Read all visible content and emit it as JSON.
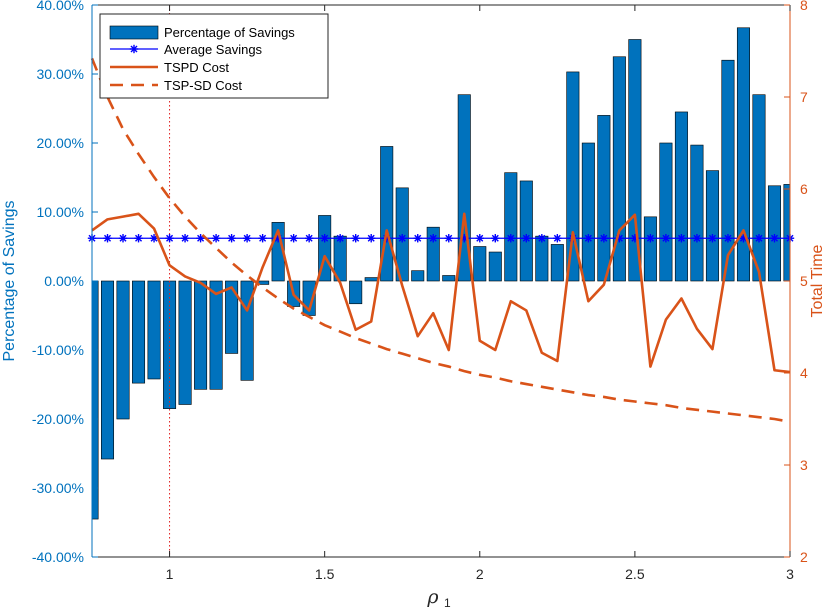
{
  "chart_data": {
    "type": "bar+line",
    "xlabel_main": "ρ",
    "xlabel_sub": "1",
    "ylabel_left": "Percentage of Savings",
    "ylabel_right": "Total Time",
    "xlim": [
      0.75,
      3.0
    ],
    "ylim_left": [
      -40,
      40
    ],
    "ylim_right": [
      2,
      8
    ],
    "x_ticks": [
      1,
      1.5,
      2,
      2.5,
      3
    ],
    "x_tick_labels": [
      "1",
      "1.5",
      "2",
      "2.5",
      "3"
    ],
    "y_left_ticks": [
      -40,
      -30,
      -20,
      -10,
      0,
      10,
      20,
      30,
      40
    ],
    "y_left_tick_labels": [
      "-40.00%",
      "-30.00%",
      "-20.00%",
      "-10.00%",
      "0.00%",
      "10.00%",
      "20.00%",
      "30.00%",
      "40.00%"
    ],
    "y_right_ticks": [
      2,
      3,
      4,
      5,
      6,
      7,
      8
    ],
    "y_right_tick_labels": [
      "2",
      "3",
      "4",
      "5",
      "6",
      "7",
      "8"
    ],
    "vline_x": 1,
    "x": [
      0.75,
      0.8,
      0.85,
      0.9,
      0.95,
      1.0,
      1.05,
      1.1,
      1.15,
      1.2,
      1.25,
      1.3,
      1.35,
      1.4,
      1.45,
      1.5,
      1.55,
      1.6,
      1.65,
      1.7,
      1.75,
      1.8,
      1.85,
      1.9,
      1.95,
      2.0,
      2.05,
      2.1,
      2.15,
      2.2,
      2.25,
      2.3,
      2.35,
      2.4,
      2.45,
      2.5,
      2.55,
      2.6,
      2.65,
      2.7,
      2.75,
      2.8,
      2.85,
      2.9,
      2.95,
      3.0
    ],
    "series": [
      {
        "name": "Percentage of Savings",
        "kind": "bar",
        "axis": "left",
        "color": "#0072BD",
        "values": [
          -34.5,
          -25.8,
          -20.0,
          -14.8,
          -14.2,
          -18.5,
          -17.9,
          -15.7,
          -15.7,
          -10.5,
          -14.4,
          -0.5,
          8.5,
          -3.7,
          -5.0,
          9.5,
          6.5,
          -3.3,
          0.5,
          19.5,
          13.5,
          1.5,
          7.8,
          0.8,
          27.0,
          5.0,
          4.2,
          15.7,
          14.5,
          6.5,
          5.3,
          30.3,
          20.0,
          24.0,
          32.5,
          35.0,
          9.3,
          20.0,
          24.5,
          19.7,
          16.0,
          32.0,
          36.7,
          27.0,
          13.8,
          14.0
        ]
      },
      {
        "name": "Average Savings",
        "kind": "line-marker",
        "axis": "left",
        "color": "#0000FF",
        "values": [
          6.2,
          6.2,
          6.2,
          6.2,
          6.2,
          6.2,
          6.2,
          6.2,
          6.2,
          6.2,
          6.2,
          6.2,
          6.2,
          6.2,
          6.2,
          6.2,
          6.2,
          6.2,
          6.2,
          6.2,
          6.2,
          6.2,
          6.2,
          6.2,
          6.2,
          6.2,
          6.2,
          6.2,
          6.2,
          6.2,
          6.2,
          6.2,
          6.2,
          6.2,
          6.2,
          6.2,
          6.2,
          6.2,
          6.2,
          6.2,
          6.2,
          6.2,
          6.2,
          6.2,
          6.2,
          6.2
        ]
      },
      {
        "name": "TSPD Cost",
        "kind": "line",
        "axis": "right",
        "color": "#D95319",
        "values": [
          5.55,
          5.67,
          5.7,
          5.73,
          5.57,
          5.17,
          5.05,
          4.98,
          4.86,
          4.93,
          4.68,
          5.15,
          5.55,
          4.85,
          4.68,
          5.27,
          4.98,
          4.47,
          4.56,
          5.55,
          4.95,
          4.4,
          4.65,
          4.25,
          5.73,
          4.35,
          4.25,
          4.78,
          4.68,
          4.22,
          4.13,
          5.53,
          4.78,
          4.96,
          5.55,
          5.72,
          4.07,
          4.58,
          4.81,
          4.48,
          4.26,
          5.28,
          5.55,
          5.1,
          4.03,
          4.01
        ]
      },
      {
        "name": "TSP-SD Cost",
        "kind": "dashed-line",
        "axis": "right",
        "color": "#D95319",
        "values": [
          7.42,
          7.0,
          6.65,
          6.38,
          6.13,
          5.9,
          5.7,
          5.52,
          5.36,
          5.2,
          5.06,
          4.93,
          4.81,
          4.7,
          4.61,
          4.52,
          4.45,
          4.38,
          4.32,
          4.26,
          4.21,
          4.16,
          4.11,
          4.07,
          4.02,
          3.98,
          3.95,
          3.91,
          3.88,
          3.85,
          3.82,
          3.79,
          3.76,
          3.74,
          3.71,
          3.69,
          3.67,
          3.65,
          3.62,
          3.6,
          3.58,
          3.56,
          3.54,
          3.52,
          3.5,
          3.47
        ]
      }
    ],
    "legend": {
      "placement": "top-left",
      "entries": [
        "Percentage of Savings",
        "Average Savings",
        "TSPD Cost",
        "TSP-SD Cost"
      ]
    }
  }
}
